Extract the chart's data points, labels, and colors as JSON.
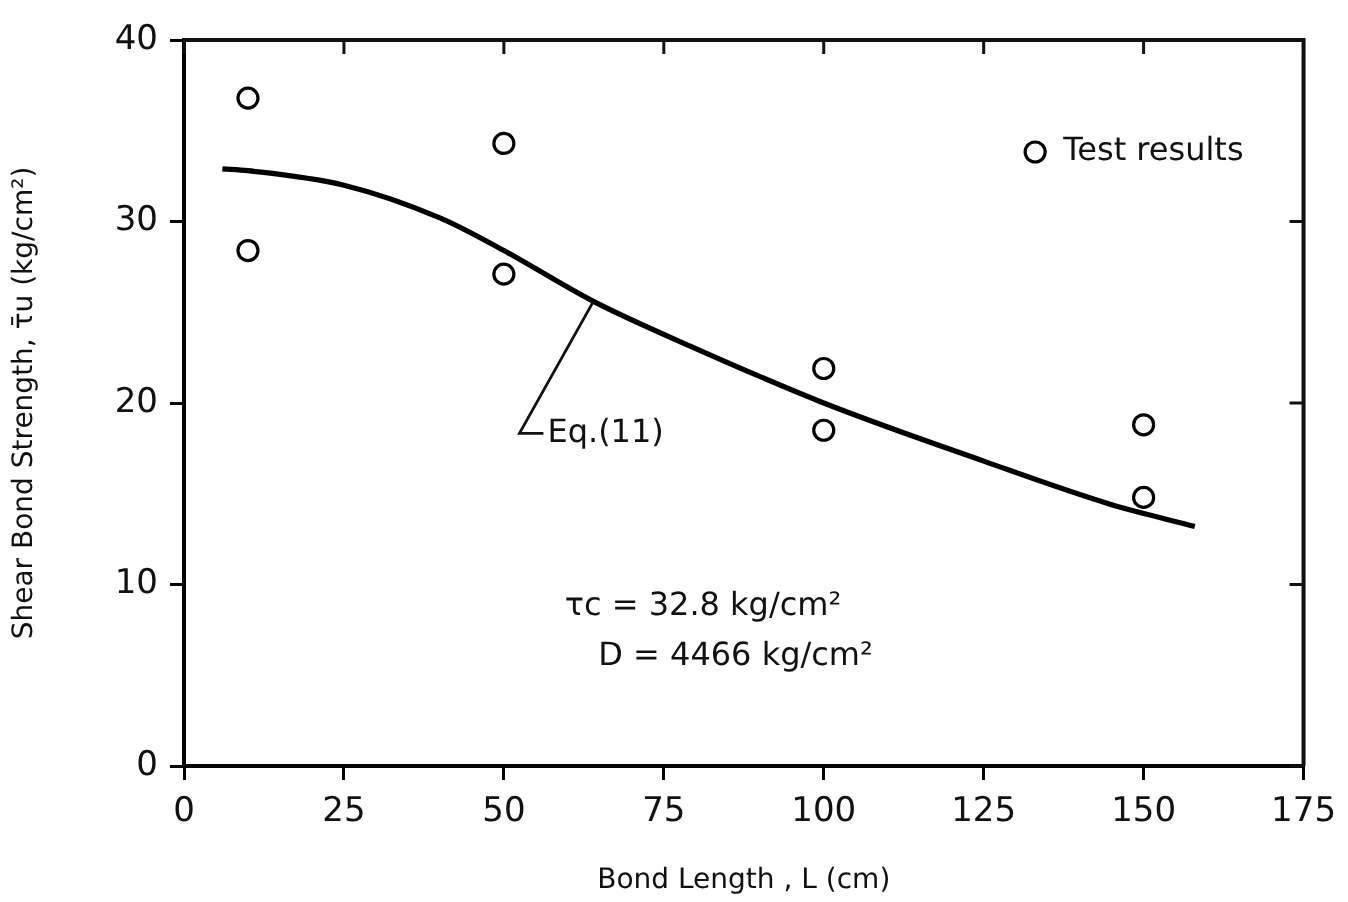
{
  "chart_data": {
    "type": "scatter",
    "xlabel": "Bond Length , L (cm)",
    "ylabel": "Shear Bond Strength, τ̄u (kg/cm²)",
    "xlim": [
      0,
      175
    ],
    "xticks": [
      0,
      25,
      50,
      75,
      100,
      125,
      150,
      175
    ],
    "ylim": [
      0,
      40
    ],
    "yticks": [
      0,
      10,
      20,
      30,
      40
    ],
    "grid": false,
    "legend": "top right",
    "marker": "circle",
    "series": [
      {
        "name": "Test results",
        "color": "#000000",
        "x": [
          10,
          10,
          50,
          50,
          100,
          100,
          150,
          150
        ],
        "values": [
          36.8,
          28.4,
          34.3,
          27.1,
          21.9,
          18.5,
          18.8,
          14.8
        ]
      },
      {
        "type": "line",
        "color": "#000000",
        "marker": "none",
        "line_style": "solid",
        "x": [
          6,
          10,
          25,
          40,
          50,
          64,
          80,
          100,
          125,
          145,
          158
        ],
        "values": [
          32.9,
          32.8,
          32,
          30.2,
          28.4,
          25.6,
          23,
          20,
          16.8,
          14.4,
          13.2
        ]
      }
    ],
    "annotations": [
      {
        "text": "Eq.(11)",
        "x": 64,
        "y": 25.6
      },
      "τc = 32.8 kg/cm²",
      "D = 4466 kg/cm²"
    ]
  }
}
